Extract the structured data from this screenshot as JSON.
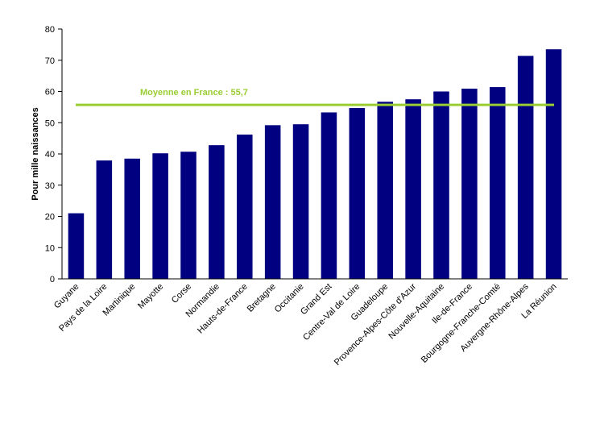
{
  "chart_data": {
    "type": "bar",
    "title": "",
    "xlabel": "",
    "ylabel": "Pour mille naissances",
    "ylim": [
      0,
      80
    ],
    "yticks": [
      0,
      10,
      20,
      30,
      40,
      50,
      60,
      70,
      80
    ],
    "grid": false,
    "categories": [
      "Guyane",
      "Pays de la Loire",
      "Martinique",
      "Mayotte",
      "Corse",
      "Normandie",
      "Hauts-de-France",
      "Bretagne",
      "Occitanie",
      "Grand Est",
      "Centre-Val de Loire",
      "Guadeloupe",
      "Provence-Alpes-Côte d'Azur",
      "Nouvelle-Aquitaine",
      "Ile-de-France",
      "Bourgogne-Franche-Comté",
      "Auvergne-Rhône-Alpes",
      "La Réunion"
    ],
    "values": [
      21.0,
      37.9,
      38.5,
      40.2,
      40.7,
      42.8,
      46.2,
      49.2,
      49.5,
      53.3,
      54.7,
      56.7,
      57.5,
      60.0,
      60.9,
      61.4,
      71.4,
      73.5
    ],
    "bar_color": "#000080",
    "average_line": {
      "value": 55.7,
      "label": "Moyenne en France : 55,7",
      "color": "#9acd32"
    }
  }
}
